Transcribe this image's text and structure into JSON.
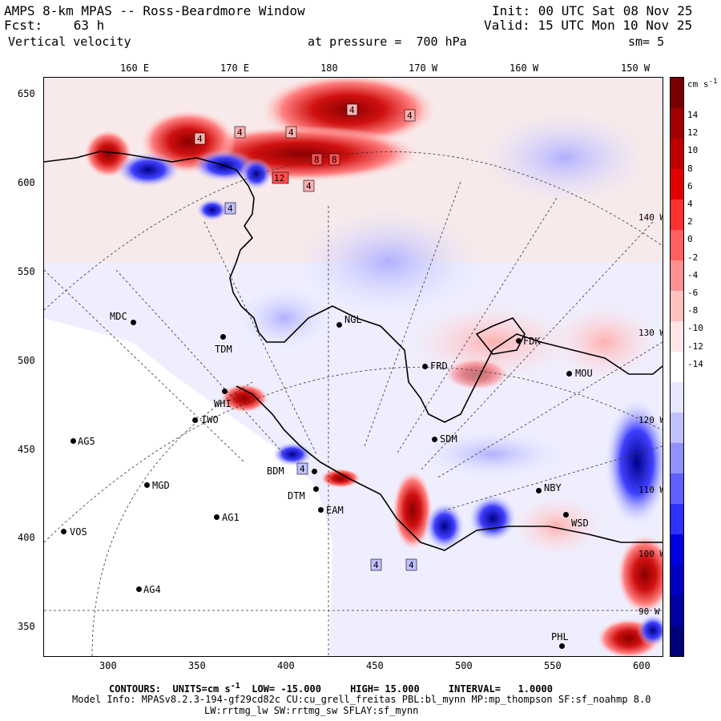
{
  "header": {
    "line1_left": "AMPS 8-km MPAS -- Ross-Beardmore Window",
    "line1_right": "Init: 00 UTC Sat 08 Nov 25",
    "line2_left": "Fcst:    63 h",
    "line2_right": "Valid: 15 UTC Mon 10 Nov 25",
    "line3_left": "Vertical velocity",
    "line3_mid": "at pressure =  700 hPa",
    "line3_right": "sm= 5"
  },
  "top_axis": [
    "160 E",
    "170 E",
    "180",
    "170 W",
    "160 W",
    "150 W"
  ],
  "x_axis": [
    "300",
    "350",
    "400",
    "450",
    "500",
    "550",
    "600"
  ],
  "y_axis": [
    "650",
    "600",
    "550",
    "500",
    "450",
    "400",
    "350"
  ],
  "colorbar": {
    "units": "cm s",
    "units_exp": "-1",
    "ticks": [
      "14",
      "12",
      "10",
      "8",
      "6",
      "4",
      "2",
      "0",
      "-2",
      "-4",
      "-6",
      "-8",
      "-10",
      "-12",
      "-14"
    ],
    "colors": [
      "#7a0000",
      "#a00000",
      "#c00000",
      "#e00000",
      "#ff3030",
      "#ff6060",
      "#ff9090",
      "#ffc0c0",
      "#ffe6e6",
      "#ffffff",
      "#e6e6ff",
      "#c0c0ff",
      "#9090ff",
      "#6060ff",
      "#3030ff",
      "#0000e0",
      "#0000c0",
      "#0000a0",
      "#00007a"
    ]
  },
  "lon_labels_on_map": [
    "140 W",
    "130 W",
    "120 W",
    "110 W",
    "100 W",
    "90 W"
  ],
  "stations": [
    {
      "id": "MDC"
    },
    {
      "id": "TDM"
    },
    {
      "id": "NGL"
    },
    {
      "id": "FDK"
    },
    {
      "id": "FRD"
    },
    {
      "id": "MOU"
    },
    {
      "id": "WHI"
    },
    {
      "id": "IWO"
    },
    {
      "id": "AG5"
    },
    {
      "id": "SDM"
    },
    {
      "id": "BDM"
    },
    {
      "id": "MGD"
    },
    {
      "id": "DTM"
    },
    {
      "id": "EAM"
    },
    {
      "id": "AG1"
    },
    {
      "id": "NBY"
    },
    {
      "id": "WSD"
    },
    {
      "id": "VOS"
    },
    {
      "id": "AG4"
    },
    {
      "id": "PHL"
    }
  ],
  "contour_labels": [
    "4",
    "4",
    "4",
    "4",
    "4",
    "8",
    "8",
    "12",
    "4",
    "4",
    "4",
    "4",
    "4"
  ],
  "footer": {
    "contours_label": "CONTOURS:",
    "units_label": "UNITS=cm s",
    "units_exp": "-1",
    "low": "LOW= -15.000",
    "high": "HIGH= 15.000",
    "interval": "INTERVAL=   1.0000",
    "model_info": "Model Info: MPASv8.2.3-194-gf29cd82c CU:cu_grell_freitas PBL:bl_mynn MP:mp_thompson SF:sf_noahmp 8.0",
    "model_info2": "LW:rrtmg_lw SW:rrtmg_sw SFLAY:sf_mynn"
  }
}
